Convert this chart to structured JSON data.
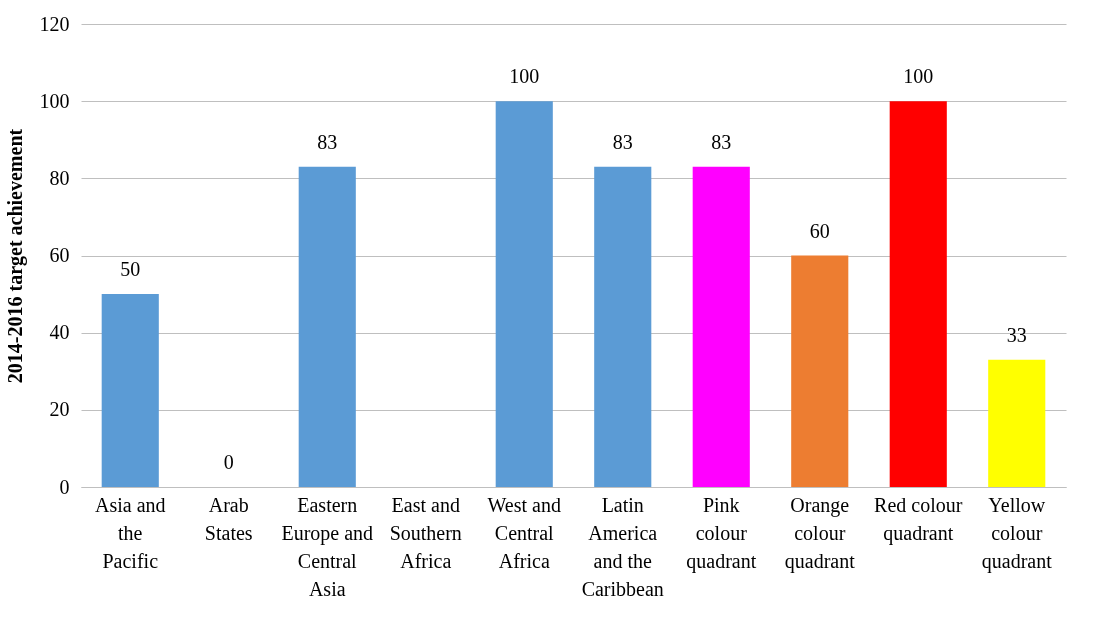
{
  "chart_data": {
    "type": "bar",
    "ylabel": "2014-2016 target achievement",
    "categories": [
      "Asia and the Pacific",
      "Arab States",
      "Eastern Europe and Central Asia",
      "East and Southern Africa",
      "West and Central Africa",
      "Latin America and the Caribbean",
      "Pink colour quadrant",
      "Orange colour quadrant",
      "Red colour quadrant",
      "Yellow colour quadrant"
    ],
    "values": [
      50,
      0,
      83,
      null,
      100,
      83,
      83,
      60,
      100,
      33
    ],
    "colors": [
      "#5b9bd5",
      "#5b9bd5",
      "#5b9bd5",
      "#5b9bd5",
      "#5b9bd5",
      "#5b9bd5",
      "#ff00ff",
      "#ed7d31",
      "#ff0000",
      "#ffff00"
    ],
    "ylim": [
      0,
      120
    ],
    "yticks": [
      0,
      20,
      40,
      60,
      80,
      100,
      120
    ],
    "grid": "y",
    "data_labels": true
  }
}
